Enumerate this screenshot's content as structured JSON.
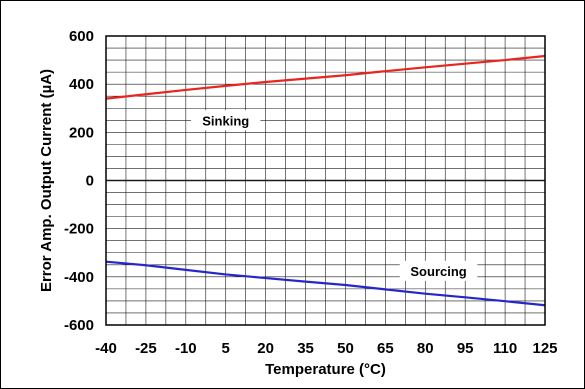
{
  "chart_data": {
    "type": "line",
    "title": "",
    "xlabel": "Temperature (°C)",
    "ylabel": "Error Amp. Output Current (µA)",
    "categories": [
      "-40",
      "-25",
      "-10",
      "5",
      "20",
      "35",
      "50",
      "65",
      "80",
      "95",
      "110",
      "125"
    ],
    "x": [
      -40,
      -25,
      -10,
      5,
      20,
      35,
      50,
      65,
      80,
      95,
      110,
      125
    ],
    "xlim": [
      -40,
      125
    ],
    "ylim": [
      -600,
      600
    ],
    "yticks": [
      "600",
      "400",
      "200",
      "0",
      "-200",
      "-400",
      "-600"
    ],
    "ytick_values": [
      600,
      400,
      200,
      0,
      -200,
      -400,
      -600
    ],
    "grid": true,
    "legend": "none",
    "series": [
      {
        "name": "Sinking",
        "color": "#e8251f",
        "values": [
          340,
          358,
          376,
          393,
          409,
          423,
          437,
          454,
          470,
          485,
          500,
          517
        ]
      },
      {
        "name": "Sourcing",
        "color": "#2727c9",
        "values": [
          -337,
          -352,
          -371,
          -390,
          -405,
          -420,
          -434,
          -452,
          -470,
          -485,
          -501,
          -518
        ]
      }
    ],
    "annotations": [
      {
        "text": "Sinking",
        "series": "Sinking"
      },
      {
        "text": "Sourcing",
        "series": "Sourcing"
      }
    ]
  }
}
